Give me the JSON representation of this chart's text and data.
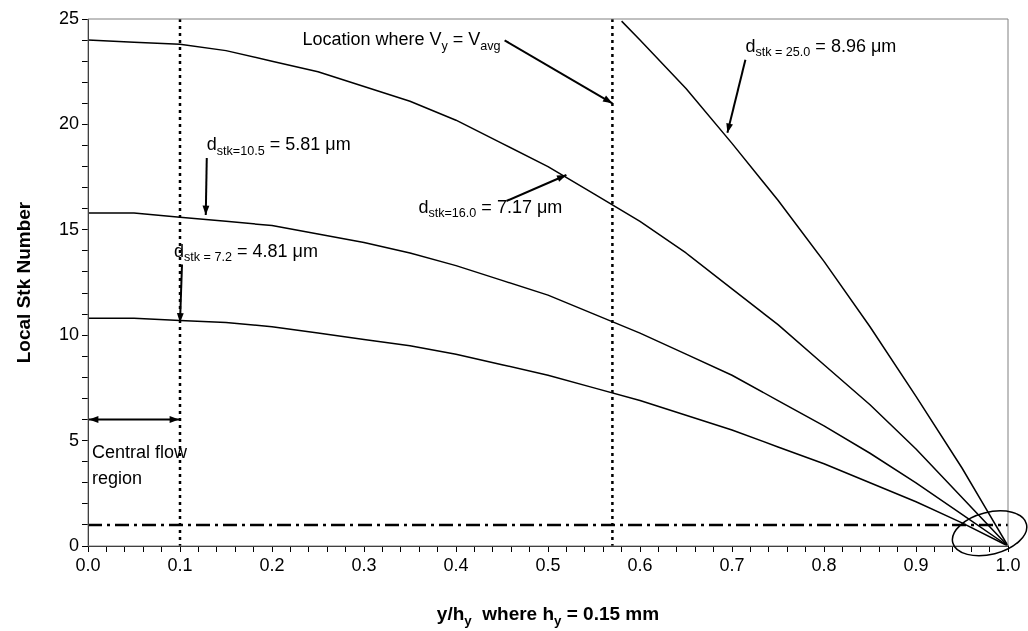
{
  "chart_data": {
    "type": "line",
    "xlabel": "y/h$_{y}$  where h$_{y}$ = 0.15 mm",
    "ylabel": "Local Stk Number",
    "x": [
      0,
      0.05,
      0.1,
      0.15,
      0.2,
      0.25,
      0.3,
      0.35,
      0.4,
      0.45,
      0.5,
      0.55,
      0.6,
      0.65,
      0.7,
      0.75,
      0.8,
      0.85,
      0.9,
      0.95,
      1.0
    ],
    "series": [
      {
        "color": "#000000",
        "values": [
          24,
          23.9,
          23.8,
          23.5,
          23.0,
          22.5,
          21.8,
          21.1,
          20.2,
          19.1,
          18.0,
          16.7,
          15.4,
          13.9,
          12.2,
          10.5,
          8.6,
          6.7,
          4.6,
          2.3,
          0
        ]
      },
      {
        "color": "#000000",
        "values": [
          15.8,
          15.8,
          15.6,
          15.4,
          15.2,
          14.8,
          14.4,
          13.9,
          13.3,
          12.6,
          11.9,
          11.0,
          10.1,
          9.1,
          8.1,
          6.9,
          5.7,
          4.4,
          3.0,
          1.5,
          0
        ]
      },
      {
        "color": "#000000",
        "values": [
          10.8,
          10.8,
          10.7,
          10.6,
          10.4,
          10.1,
          9.8,
          9.5,
          9.1,
          8.6,
          8.1,
          7.5,
          6.9,
          6.2,
          5.5,
          4.7,
          3.9,
          3.0,
          2.1,
          1.1,
          0
        ]
      },
      {
        "color": "#000000",
        "x": [
          0.58,
          0.6,
          0.65,
          0.7,
          0.75,
          0.8,
          0.85,
          0.9,
          0.95,
          1.0
        ],
        "values": [
          24.9,
          24.0,
          21.7,
          19.1,
          16.4,
          13.5,
          10.4,
          7.1,
          3.7,
          0
        ]
      }
    ],
    "xlim": [
      0,
      1
    ],
    "ylim": [
      0,
      25
    ],
    "xticks": [
      {
        "value": 0,
        "label": "0.0"
      },
      {
        "value": 0.02,
        "label": null
      },
      {
        "value": 0.04,
        "label": null
      },
      {
        "value": 0.06,
        "label": null
      },
      {
        "value": 0.08,
        "label": null
      },
      {
        "value": 0.1,
        "label": "0.1"
      },
      {
        "value": 0.12,
        "label": null
      },
      {
        "value": 0.14,
        "label": null
      },
      {
        "value": 0.16,
        "label": null
      },
      {
        "value": 0.18,
        "label": null
      },
      {
        "value": 0.2,
        "label": "0.2"
      },
      {
        "value": 0.22,
        "label": null
      },
      {
        "value": 0.24,
        "label": null
      },
      {
        "value": 0.26,
        "label": null
      },
      {
        "value": 0.28,
        "label": null
      },
      {
        "value": 0.3,
        "label": "0.3"
      },
      {
        "value": 0.32,
        "label": null
      },
      {
        "value": 0.34,
        "label": null
      },
      {
        "value": 0.36,
        "label": null
      },
      {
        "value": 0.38,
        "label": null
      },
      {
        "value": 0.4,
        "label": "0.4"
      },
      {
        "value": 0.42,
        "label": null
      },
      {
        "value": 0.44,
        "label": null
      },
      {
        "value": 0.46,
        "label": null
      },
      {
        "value": 0.48,
        "label": null
      },
      {
        "value": 0.5,
        "label": "0.5"
      },
      {
        "value": 0.52,
        "label": null
      },
      {
        "value": 0.54,
        "label": null
      },
      {
        "value": 0.56,
        "label": null
      },
      {
        "value": 0.58,
        "label": null
      },
      {
        "value": 0.6,
        "label": "0.6"
      },
      {
        "value": 0.62,
        "label": null
      },
      {
        "value": 0.64,
        "label": null
      },
      {
        "value": 0.66,
        "label": null
      },
      {
        "value": 0.68,
        "label": null
      },
      {
        "value": 0.7,
        "label": "0.7"
      },
      {
        "value": 0.72,
        "label": null
      },
      {
        "value": 0.74,
        "label": null
      },
      {
        "value": 0.76,
        "label": null
      },
      {
        "value": 0.78,
        "label": null
      },
      {
        "value": 0.8,
        "label": "0.8"
      },
      {
        "value": 0.82,
        "label": null
      },
      {
        "value": 0.84,
        "label": null
      },
      {
        "value": 0.86,
        "label": null
      },
      {
        "value": 0.88,
        "label": null
      },
      {
        "value": 0.9,
        "label": "0.9"
      },
      {
        "value": 0.92,
        "label": null
      },
      {
        "value": 0.94,
        "label": null
      },
      {
        "value": 0.96,
        "label": null
      },
      {
        "value": 0.98,
        "label": null
      },
      {
        "value": 1,
        "label": "1.0"
      }
    ],
    "yticks": [
      0,
      {
        "value": 1,
        "label": null
      },
      {
        "value": 2,
        "label": null
      },
      {
        "value": 3,
        "label": null
      },
      {
        "value": 4,
        "label": null
      },
      5,
      {
        "value": 6,
        "label": null
      },
      {
        "value": 7,
        "label": null
      },
      {
        "value": 8,
        "label": null
      },
      {
        "value": 9,
        "label": null
      },
      10,
      {
        "value": 11,
        "label": null
      },
      {
        "value": 12,
        "label": null
      },
      {
        "value": 13,
        "label": null
      },
      {
        "value": 14,
        "label": null
      },
      15,
      {
        "value": 16,
        "label": null
      },
      {
        "value": 17,
        "label": null
      },
      {
        "value": 18,
        "label": null
      },
      {
        "value": 19,
        "label": null
      },
      20,
      {
        "value": 21,
        "label": null
      },
      {
        "value": 22,
        "label": null
      },
      {
        "value": 23,
        "label": null
      },
      {
        "value": 24,
        "label": null
      },
      25
    ],
    "grid": false,
    "legend": false,
    "marker": "none",
    "line_style": "solid",
    "ref_lines": [
      {
        "axis": "x",
        "value": 0.1,
        "color": "#000000",
        "line_style": "dotted"
      },
      {
        "axis": "x",
        "value": 0.57,
        "color": "#000000",
        "line_style": "dotted"
      },
      {
        "axis": "y",
        "value": 1,
        "color": "#000000",
        "line_style": "dashed"
      }
    ],
    "annotations": [
      {
        "text": "Location where V$_{y}$ = V$_{avg}$",
        "x": 0.57,
        "y": 21
      },
      {
        "text": "d$_{stk = 25.0}$ = 8.96 μm",
        "x": 0.695,
        "y": 19.6
      },
      {
        "text": "d$_{stk=16.0}$ = 7.17 μm",
        "x": 0.52,
        "y": 17.6
      },
      {
        "text": "d$_{stk=10.5}$ = 5.81 μm",
        "x": 0.128,
        "y": 15.7
      },
      {
        "text": "d$_{stk = 7.2}$ = 4.81 μm",
        "x": 0.1,
        "y": 10.6
      },
      "Central flow region"
    ]
  }
}
